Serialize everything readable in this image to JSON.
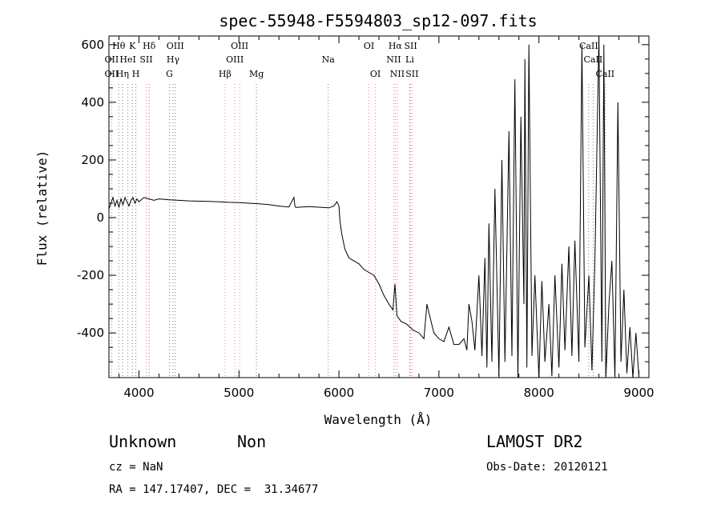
{
  "chart_data": {
    "type": "line",
    "title": "spec-55948-F5594803_sp12-097.fits",
    "xlabel": "Wavelength (Å)",
    "ylabel": "Flux (relative)",
    "xlim": [
      3700,
      9100
    ],
    "ylim": [
      -555,
      630
    ],
    "xticks": [
      4000,
      5000,
      6000,
      7000,
      8000,
      9000
    ],
    "yticks": [
      -400,
      -200,
      0,
      200,
      400,
      600
    ],
    "grid": false,
    "series": [
      {
        "x": [
          3700,
          3720,
          3740,
          3760,
          3780,
          3800,
          3820,
          3840,
          3860,
          3880,
          3900,
          3920,
          3940,
          3960,
          3980,
          4000,
          4050,
          4100,
          4150,
          4200,
          4300,
          4400,
          4500,
          4600,
          4700,
          4800,
          4860,
          4900,
          5000,
          5100,
          5200,
          5300,
          5400,
          5500,
          5550,
          5560,
          5570,
          5600,
          5700,
          5800,
          5900,
          5950,
          5980,
          6000,
          6010,
          6030,
          6060,
          6100,
          6150,
          6200,
          6250,
          6300,
          6350,
          6400,
          6450,
          6500,
          6540,
          6560,
          6580,
          6620,
          6680,
          6740,
          6800,
          6850,
          6880,
          6900,
          6950,
          7000,
          7050,
          7100,
          7150,
          7200,
          7250,
          7280,
          7300,
          7330,
          7360,
          7400,
          7430,
          7460,
          7480,
          7500,
          7530,
          7560,
          7600,
          7630,
          7660,
          7700,
          7730,
          7760,
          7790,
          7820,
          7850,
          7860,
          7880,
          7900,
          7930,
          7960,
          8000,
          8030,
          8060,
          8100,
          8130,
          8160,
          8200,
          8230,
          8260,
          8300,
          8330,
          8360,
          8400,
          8430,
          8460,
          8500,
          8530,
          8560,
          8600,
          8630,
          8650,
          8670,
          8700,
          8730,
          8760,
          8790,
          8820,
          8850,
          8880,
          8910,
          8940,
          8970,
          9000
        ],
        "y": [
          30,
          50,
          70,
          40,
          60,
          35,
          65,
          45,
          70,
          55,
          40,
          60,
          70,
          50,
          65,
          55,
          70,
          65,
          60,
          65,
          62,
          60,
          58,
          57,
          56,
          55,
          54,
          53,
          52,
          50,
          48,
          45,
          40,
          37,
          70,
          40,
          35,
          36,
          38,
          36,
          34,
          40,
          55,
          40,
          -10,
          -60,
          -110,
          -140,
          -150,
          -160,
          -180,
          -190,
          -200,
          -230,
          -270,
          -300,
          -320,
          -230,
          -340,
          -360,
          -370,
          -390,
          -400,
          -420,
          -300,
          -330,
          -400,
          -420,
          -430,
          -380,
          -440,
          -440,
          -420,
          -460,
          -300,
          -360,
          -460,
          -200,
          -480,
          -140,
          -520,
          -20,
          -500,
          100,
          -550,
          200,
          -500,
          300,
          -480,
          480,
          -560,
          350,
          -300,
          550,
          -520,
          600,
          -480,
          -200,
          -560,
          -220,
          -500,
          -300,
          -550,
          -200,
          -520,
          -160,
          -460,
          -100,
          -480,
          -80,
          -500,
          600,
          -450,
          -200,
          -530,
          -150,
          650,
          -500,
          600,
          -560,
          -300,
          -150,
          -560,
          400,
          -500,
          -250,
          -540,
          -380,
          -560,
          -400,
          -550
        ]
      }
    ],
    "line_markers": [
      {
        "label": "Hθ",
        "wave": 3798,
        "row": 1,
        "color": "#7a7a7a"
      },
      {
        "label": "K",
        "wave": 3934,
        "row": 1,
        "color": "#7a7a7a"
      },
      {
        "label": "Hδ",
        "wave": 4102,
        "row": 1,
        "color": "#7a7a7a"
      },
      {
        "label": "OIII",
        "wave": 4363,
        "row": 1,
        "color": "#7a7a7a"
      },
      {
        "label": "OIII",
        "wave": 5007,
        "row": 1,
        "color": "#ff8080"
      },
      {
        "label": "OI",
        "wave": 6300,
        "row": 1,
        "color": "#ff8080"
      },
      {
        "label": "Hα",
        "wave": 6563,
        "row": 1,
        "color": "#ff8080"
      },
      {
        "label": "SII",
        "wave": 6717,
        "row": 1,
        "color": "#ff8080"
      },
      {
        "label": "CaII",
        "wave": 8498,
        "row": 1,
        "color": "#7a7a7a"
      },
      {
        "label": "OII",
        "wave": 3727,
        "row": 2,
        "color": "#ff8080"
      },
      {
        "label": "HeI",
        "wave": 3889,
        "row": 2,
        "color": "#7a7a7a"
      },
      {
        "label": "SII",
        "wave": 4072,
        "row": 2,
        "color": "#ff8080"
      },
      {
        "label": "Hγ",
        "wave": 4341,
        "row": 2,
        "color": "#7a7a7a"
      },
      {
        "label": "OIII",
        "wave": 4959,
        "row": 2,
        "color": "#ff8080"
      },
      {
        "label": "Na",
        "wave": 5893,
        "row": 2,
        "color": "#7a7a7a"
      },
      {
        "label": "NII",
        "wave": 6548,
        "row": 2,
        "color": "#ff8080"
      },
      {
        "label": "Li",
        "wave": 6708,
        "row": 2,
        "color": "#7a7a7a"
      },
      {
        "label": "CaII",
        "wave": 8542,
        "row": 2,
        "color": "#7a7a7a"
      },
      {
        "label": "OII",
        "wave": 3727,
        "row": 3,
        "color": "#ff8080"
      },
      {
        "label": "Hη",
        "wave": 3835,
        "row": 3,
        "color": "#7a7a7a"
      },
      {
        "label": "H",
        "wave": 3969,
        "row": 3,
        "color": "#7a7a7a"
      },
      {
        "label": "G",
        "wave": 4305,
        "row": 3,
        "color": "#7a7a7a"
      },
      {
        "label": "Hβ",
        "wave": 4861,
        "row": 3,
        "color": "#ff8080"
      },
      {
        "label": "Mg",
        "wave": 5175,
        "row": 3,
        "color": "#7a7a7a"
      },
      {
        "label": "OI",
        "wave": 6364,
        "row": 3,
        "color": "#ff8080"
      },
      {
        "label": "NII",
        "wave": 6584,
        "row": 3,
        "color": "#ff8080"
      },
      {
        "label": "SII",
        "wave": 6731,
        "row": 3,
        "color": "#ff8080"
      },
      {
        "label": "CaII",
        "wave": 8662,
        "row": 3,
        "color": "#7a7a7a"
      }
    ]
  },
  "info": {
    "class": "Unknown",
    "subclass": "Non",
    "survey": "LAMOST DR2",
    "cz": "cz = NaN",
    "obs_date": "Obs-Date: 20120121",
    "coords": "RA = 147.17407, DEC =  31.34677"
  }
}
